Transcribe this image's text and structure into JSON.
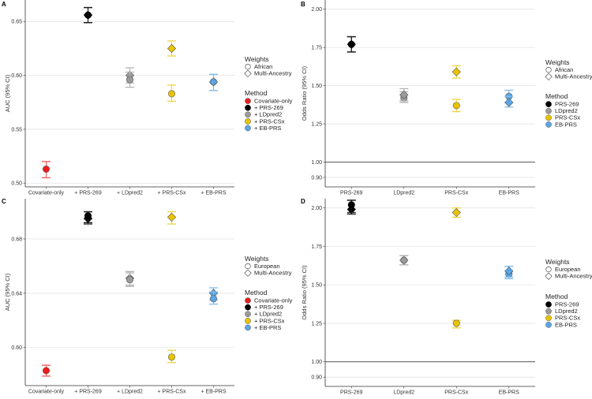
{
  "colors": {
    "Covariate-only": "#ee1c1c",
    "PRS-269": "#000000",
    "LDpred2": "#9a9a9a",
    "PRS-CSx": "#e9c300",
    "EB-PRS": "#5aa6e6"
  },
  "chart_data": [
    {
      "panel": "A",
      "type": "scatter",
      "ylabel": "AUC (95% CI)",
      "ylim": [
        0.4965,
        0.67
      ],
      "yticks": [
        "0.50",
        "0.55",
        "0.60",
        "0.65"
      ],
      "yticks_values": [
        0.5,
        0.55,
        0.6,
        0.65
      ],
      "reference_line": null,
      "categories": [
        "Covariate-only",
        "+ PRS-269",
        "+ LDpred2",
        "+ PRS-CSx",
        "+ EB-PRS"
      ],
      "method_keys": [
        "Covariate-only",
        "PRS-269",
        "LDpred2",
        "PRS-CSx",
        "EB-PRS"
      ],
      "legend": {
        "weights_title": "Weights",
        "weights": [
          "African",
          "Multi-Ancestry"
        ],
        "method_title": "Method",
        "methods": [
          "Covariate-only",
          "+ PRS-269",
          "+ LDpred2",
          "+ PRS-CSx",
          "+ EB-PRS"
        ]
      },
      "points": [
        {
          "category": "Covariate-only",
          "weights": "African",
          "value": 0.513,
          "lo": 0.505,
          "hi": 0.52
        },
        {
          "category": "+ PRS-269",
          "weights": "Multi-Ancestry",
          "value": 0.656,
          "lo": 0.649,
          "hi": 0.663
        },
        {
          "category": "+ PRS-269",
          "weights": "African",
          "value": 0.656,
          "lo": 0.649,
          "hi": 0.663
        },
        {
          "category": "+ LDpred2",
          "weights": "Multi-Ancestry",
          "value": 0.6,
          "lo": 0.593,
          "hi": 0.607
        },
        {
          "category": "+ LDpred2",
          "weights": "African",
          "value": 0.596,
          "lo": 0.589,
          "hi": 0.603
        },
        {
          "category": "+ PRS-CSx",
          "weights": "Multi-Ancestry",
          "value": 0.625,
          "lo": 0.618,
          "hi": 0.632
        },
        {
          "category": "+ PRS-CSx",
          "weights": "African",
          "value": 0.583,
          "lo": 0.576,
          "hi": 0.591
        },
        {
          "category": "+ EB-PRS",
          "weights": "African",
          "value": 0.594,
          "lo": 0.586,
          "hi": 0.601
        },
        {
          "category": "+ EB-PRS",
          "weights": "Multi-Ancestry",
          "value": 0.594,
          "lo": 0.586,
          "hi": 0.601
        }
      ]
    },
    {
      "panel": "B",
      "type": "scatter",
      "ylabel": "Odds Ratio (95% CI)",
      "ylim": [
        0.838,
        2.06
      ],
      "yticks": [
        "0.90",
        "1.00",
        "1.25",
        "1.50",
        "1.75",
        "2.00"
      ],
      "yticks_values": [
        0.9,
        1.0,
        1.25,
        1.5,
        1.75,
        2.0
      ],
      "reference_line": 1.0,
      "categories": [
        "PRS-269",
        "LDpred2",
        "PRS-CSx",
        "EB-PRS"
      ],
      "method_keys": [
        "PRS-269",
        "LDpred2",
        "PRS-CSx",
        "EB-PRS"
      ],
      "legend": {
        "weights_title": "Weights",
        "weights": [
          "African",
          "Multi-Ancestry"
        ],
        "method_title": "Method",
        "methods": [
          "PRS-269",
          "LDpred2",
          "PRS-CSx",
          "EB-PRS"
        ]
      },
      "points": [
        {
          "category": "PRS-269",
          "weights": "Multi-Ancestry",
          "value": 1.77,
          "lo": 1.72,
          "hi": 1.82
        },
        {
          "category": "PRS-269",
          "weights": "African",
          "value": 1.77,
          "lo": 1.72,
          "hi": 1.82
        },
        {
          "category": "LDpred2",
          "weights": "African",
          "value": 1.42,
          "lo": 1.39,
          "hi": 1.46
        },
        {
          "category": "LDpred2",
          "weights": "Multi-Ancestry",
          "value": 1.44,
          "lo": 1.4,
          "hi": 1.48
        },
        {
          "category": "PRS-CSx",
          "weights": "Multi-Ancestry",
          "value": 1.59,
          "lo": 1.55,
          "hi": 1.63
        },
        {
          "category": "PRS-CSx",
          "weights": "African",
          "value": 1.37,
          "lo": 1.33,
          "hi": 1.41
        },
        {
          "category": "EB-PRS",
          "weights": "African",
          "value": 1.43,
          "lo": 1.39,
          "hi": 1.47
        },
        {
          "category": "EB-PRS",
          "weights": "Multi-Ancestry",
          "value": 1.39,
          "lo": 1.36,
          "hi": 1.43
        }
      ]
    },
    {
      "panel": "C",
      "type": "scatter",
      "ylabel": "AUC (95% CI)",
      "ylim": [
        0.572,
        0.7096
      ],
      "yticks": [
        "0.60",
        "0.64",
        "0.68"
      ],
      "yticks_values": [
        0.6,
        0.64,
        0.68
      ],
      "reference_line": null,
      "categories": [
        "Covariate-only",
        "+ PRS-269",
        "+ LDpred2",
        "+ PRS-CSx",
        "+ EB-PRS"
      ],
      "method_keys": [
        "Covariate-only",
        "PRS-269",
        "LDpred2",
        "PRS-CSx",
        "EB-PRS"
      ],
      "legend": {
        "weights_title": "Weights",
        "weights": [
          "European",
          "Multi-Ancestry"
        ],
        "method_title": "Method",
        "methods": [
          "Covariate-only",
          "+ PRS-269",
          "+ LDpred2",
          "+ PRS-CSx",
          "+ EB-PRS"
        ]
      },
      "points": [
        {
          "category": "Covariate-only",
          "weights": "European",
          "value": 0.583,
          "lo": 0.579,
          "hi": 0.587
        },
        {
          "category": "+ PRS-269",
          "weights": "Multi-Ancestry",
          "value": 0.695,
          "lo": 0.691,
          "hi": 0.7
        },
        {
          "category": "+ PRS-269",
          "weights": "European",
          "value": 0.697,
          "lo": 0.692,
          "hi": 0.7
        },
        {
          "category": "+ LDpred2",
          "weights": "Multi-Ancestry",
          "value": 0.651,
          "lo": 0.646,
          "hi": 0.656
        },
        {
          "category": "+ LDpred2",
          "weights": "European",
          "value": 0.65,
          "lo": 0.645,
          "hi": 0.655
        },
        {
          "category": "+ PRS-CSx",
          "weights": "Multi-Ancestry",
          "value": 0.696,
          "lo": 0.691,
          "hi": 0.7
        },
        {
          "category": "+ PRS-CSx",
          "weights": "European",
          "value": 0.593,
          "lo": 0.589,
          "hi": 0.598
        },
        {
          "category": "+ EB-PRS",
          "weights": "Multi-Ancestry",
          "value": 0.64,
          "lo": 0.635,
          "hi": 0.644
        },
        {
          "category": "+ EB-PRS",
          "weights": "European",
          "value": 0.636,
          "lo": 0.632,
          "hi": 0.641
        }
      ]
    },
    {
      "panel": "D",
      "type": "scatter",
      "ylabel": "Odds Ratio (95% CI)",
      "ylim": [
        0.84,
        2.06
      ],
      "yticks": [
        "0.90",
        "1.00",
        "1.25",
        "1.50",
        "1.75",
        "2.00"
      ],
      "yticks_values": [
        0.9,
        1.0,
        1.25,
        1.5,
        1.75,
        2.0
      ],
      "reference_line": 1.0,
      "categories": [
        "PRS-269",
        "LDpred2",
        "PRS-CSx",
        "EB-PRS"
      ],
      "method_keys": [
        "PRS-269",
        "LDpred2",
        "PRS-CSx",
        "EB-PRS"
      ],
      "legend": {
        "weights_title": "Weights",
        "weights": [
          "European",
          "Multi-Ancestry"
        ],
        "method_title": "Method",
        "methods": [
          "PRS-269",
          "LDpred2",
          "PRS-CSx",
          "EB-PRS"
        ]
      },
      "points": [
        {
          "category": "PRS-269",
          "weights": "Multi-Ancestry",
          "value": 1.99,
          "lo": 1.96,
          "hi": 2.05
        },
        {
          "category": "PRS-269",
          "weights": "European",
          "value": 2.02,
          "lo": 1.97,
          "hi": 2.05
        },
        {
          "category": "LDpred2",
          "weights": "European",
          "value": 1.66,
          "lo": 1.63,
          "hi": 1.69
        },
        {
          "category": "LDpred2",
          "weights": "Multi-Ancestry",
          "value": 1.66,
          "lo": 1.63,
          "hi": 1.69
        },
        {
          "category": "PRS-CSx",
          "weights": "Multi-Ancestry",
          "value": 1.97,
          "lo": 1.94,
          "hi": 2.0
        },
        {
          "category": "PRS-CSx",
          "weights": "European",
          "value": 1.25,
          "lo": 1.22,
          "hi": 1.27
        },
        {
          "category": "EB-PRS",
          "weights": "European",
          "value": 1.57,
          "lo": 1.54,
          "hi": 1.62
        },
        {
          "category": "EB-PRS",
          "weights": "Multi-Ancestry",
          "value": 1.59,
          "lo": 1.55,
          "hi": 1.62
        }
      ]
    }
  ]
}
